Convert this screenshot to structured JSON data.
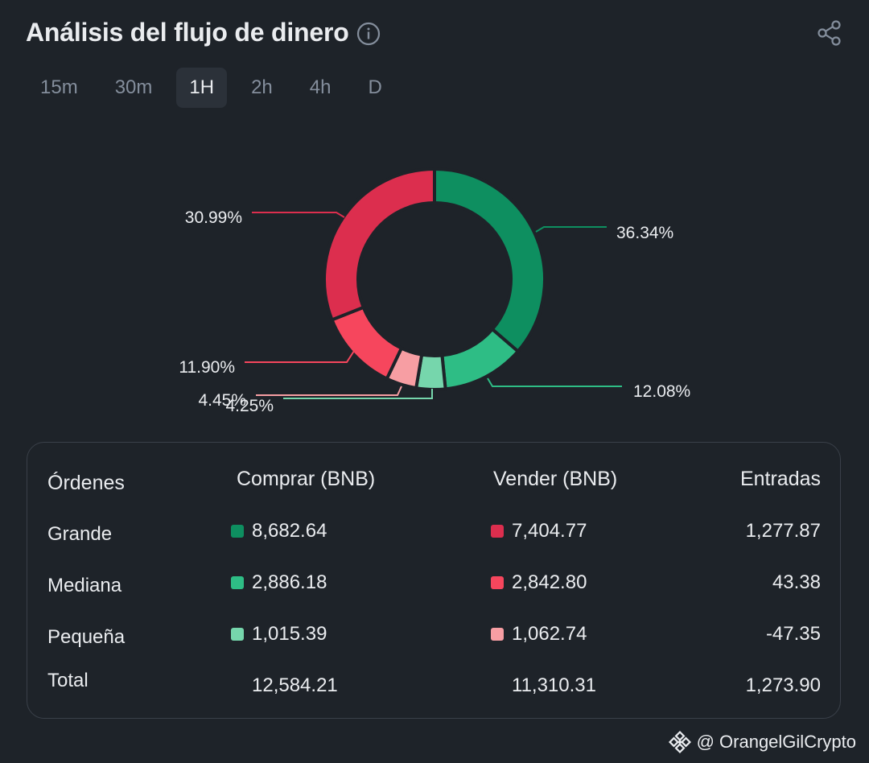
{
  "header": {
    "title": "Análisis del flujo de dinero"
  },
  "tabs": [
    {
      "label": "15m"
    },
    {
      "label": "30m"
    },
    {
      "label": "1H",
      "active": true
    },
    {
      "label": "2h"
    },
    {
      "label": "4h"
    },
    {
      "label": "D"
    }
  ],
  "colors": {
    "buy_large": "#0e8f60",
    "buy_medium": "#2ebd85",
    "buy_small": "#76d6ac",
    "sell_large": "#dc2e4e",
    "sell_medium": "#f6465d",
    "sell_small": "#f79ea3"
  },
  "chart_data": {
    "type": "pie",
    "slices": [
      {
        "label": "36.34%",
        "value": 36.34,
        "color": "#0e8f60"
      },
      {
        "label": "12.08%",
        "value": 12.08,
        "color": "#2ebd85"
      },
      {
        "label": "4.25%",
        "value": 4.25,
        "color": "#76d6ac"
      },
      {
        "label": "4.45%",
        "value": 4.45,
        "color": "#f79ea3"
      },
      {
        "label": "11.90%",
        "value": 11.9,
        "color": "#f6465d"
      },
      {
        "label": "30.99%",
        "value": 30.99,
        "color": "#dc2e4e"
      }
    ]
  },
  "table": {
    "headers": {
      "orders": "Órdenes",
      "buy": "Comprar (BNB)",
      "sell": "Vender (BNB)",
      "inflow": "Entradas"
    },
    "rows": [
      {
        "label": "Grande",
        "buy": "8,682.64",
        "sell": "7,404.77",
        "inflow": "1,277.87"
      },
      {
        "label": "Mediana",
        "buy": "2,886.18",
        "sell": "2,842.80",
        "inflow": "43.38"
      },
      {
        "label": "Pequeña",
        "buy": "1,015.39",
        "sell": "1,062.74",
        "inflow": "-47.35"
      },
      {
        "label": "Total",
        "buy": "12,584.21",
        "sell": "11,310.31",
        "inflow": "1,273.90"
      }
    ]
  },
  "footer": {
    "handle": "@ OrangelGilCrypto"
  }
}
